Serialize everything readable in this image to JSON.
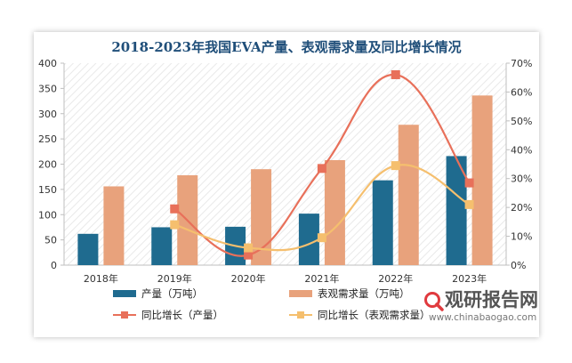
{
  "chart_data": {
    "type": "bar",
    "title": "2018-2023年我国EVA产量、表观需求量及同比增长情况",
    "categories": [
      "2018年",
      "2019年",
      "2020年",
      "2021年",
      "2022年",
      "2023年"
    ],
    "series": [
      {
        "name": "产量（万吨）",
        "type": "bar",
        "axis": "left",
        "color": "#1f6b8f",
        "values": [
          62,
          75,
          76,
          102,
          168,
          216
        ]
      },
      {
        "name": "表观需求量（万吨）",
        "type": "bar",
        "axis": "left",
        "color": "#e8a27c",
        "values": [
          156,
          178,
          190,
          208,
          278,
          336
        ]
      },
      {
        "name": "同比增长（产量）",
        "type": "line",
        "axis": "right",
        "color": "#e8705a",
        "values": [
          null,
          0.195,
          0.035,
          0.335,
          0.66,
          0.285
        ]
      },
      {
        "name": "同比增长（表观需求量）",
        "type": "line",
        "axis": "right",
        "color": "#f5bf6e",
        "values": [
          null,
          0.14,
          0.06,
          0.095,
          0.345,
          0.21
        ]
      }
    ],
    "y_left": {
      "min": 0,
      "max": 400,
      "ticks": [
        "0",
        "50",
        "100",
        "150",
        "200",
        "250",
        "300",
        "350",
        "400"
      ]
    },
    "y_right": {
      "min": 0,
      "max": 0.7,
      "ticks": [
        "0%",
        "10%",
        "20%",
        "30%",
        "40%",
        "50%",
        "60%",
        "70%"
      ]
    },
    "grid": false,
    "legend": "bottom"
  },
  "watermark": {
    "text_cn": "观研报告网",
    "text_en": "www.chinabaogao.com",
    "icon": "magnifier-logo-icon",
    "color": "#e03a3e"
  }
}
